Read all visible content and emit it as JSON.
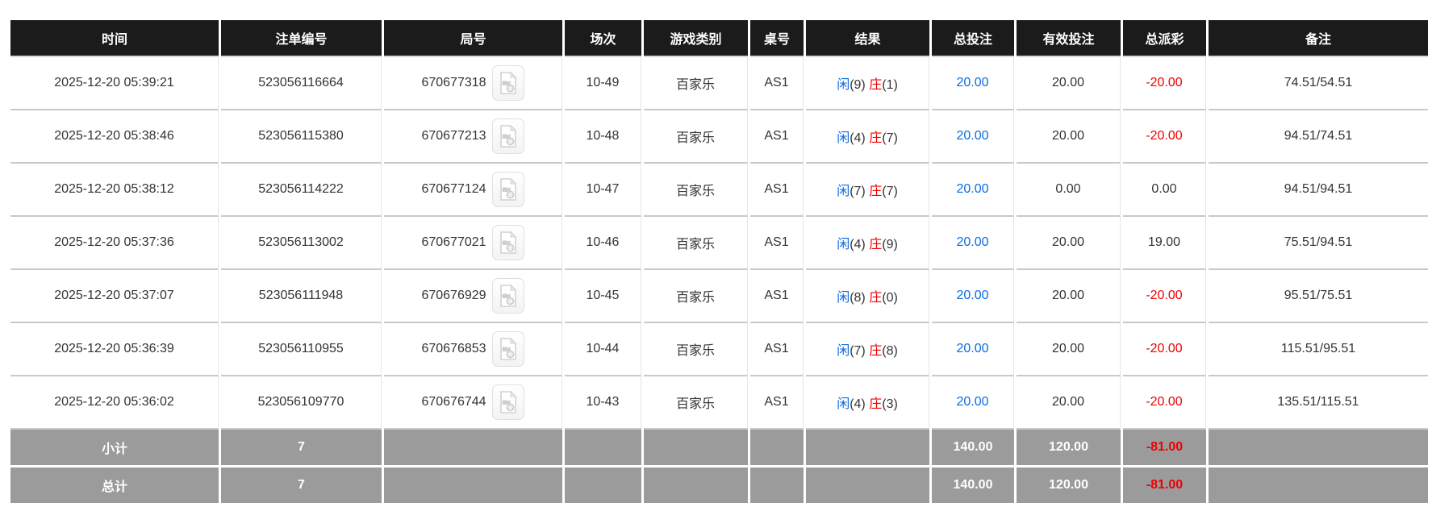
{
  "colors": {
    "header_bg": "#1b1b1b",
    "summary_bg": "#9b9b9b",
    "accent_blue": "#0a6ce0",
    "accent_red": "#ee0000",
    "body_text": "#333333"
  },
  "table": {
    "columns": [
      {
        "key": "time",
        "label": "时间"
      },
      {
        "key": "bet-id",
        "label": "注单编号"
      },
      {
        "key": "round-id",
        "label": "局号"
      },
      {
        "key": "session",
        "label": "场次"
      },
      {
        "key": "game-type",
        "label": "游戏类别"
      },
      {
        "key": "table-no",
        "label": "桌号"
      },
      {
        "key": "result",
        "label": "结果"
      },
      {
        "key": "total-bet",
        "label": "总投注"
      },
      {
        "key": "valid-bet",
        "label": "有效投注"
      },
      {
        "key": "total-payout",
        "label": "总派彩"
      },
      {
        "key": "remark",
        "label": "备注"
      }
    ],
    "rows": [
      {
        "time": "2025-12-20 05:39:21",
        "bet_id": "523056116664",
        "round_id": "670677318",
        "session": "10-49",
        "game_type": "百家乐",
        "table_no": "AS1",
        "player_label": "闲",
        "player_score": "(9)",
        "banker_label": "庄",
        "banker_score": "(1)",
        "total_bet": "20.00",
        "valid_bet": "20.00",
        "total_payout": "-20.00",
        "remark": "74.51/54.51"
      },
      {
        "time": "2025-12-20 05:38:46",
        "bet_id": "523056115380",
        "round_id": "670677213",
        "session": "10-48",
        "game_type": "百家乐",
        "table_no": "AS1",
        "player_label": "闲",
        "player_score": "(4)",
        "banker_label": "庄",
        "banker_score": "(7)",
        "total_bet": "20.00",
        "valid_bet": "20.00",
        "total_payout": "-20.00",
        "remark": "94.51/74.51"
      },
      {
        "time": "2025-12-20 05:38:12",
        "bet_id": "523056114222",
        "round_id": "670677124",
        "session": "10-47",
        "game_type": "百家乐",
        "table_no": "AS1",
        "player_label": "闲",
        "player_score": "(7)",
        "banker_label": "庄",
        "banker_score": "(7)",
        "total_bet": "20.00",
        "valid_bet": "0.00",
        "total_payout": "0.00",
        "remark": "94.51/94.51"
      },
      {
        "time": "2025-12-20 05:37:36",
        "bet_id": "523056113002",
        "round_id": "670677021",
        "session": "10-46",
        "game_type": "百家乐",
        "table_no": "AS1",
        "player_label": "闲",
        "player_score": "(4)",
        "banker_label": "庄",
        "banker_score": "(9)",
        "total_bet": "20.00",
        "valid_bet": "20.00",
        "total_payout": "19.00",
        "remark": "75.51/94.51"
      },
      {
        "time": "2025-12-20 05:37:07",
        "bet_id": "523056111948",
        "round_id": "670676929",
        "session": "10-45",
        "game_type": "百家乐",
        "table_no": "AS1",
        "player_label": "闲",
        "player_score": "(8)",
        "banker_label": "庄",
        "banker_score": "(0)",
        "total_bet": "20.00",
        "valid_bet": "20.00",
        "total_payout": "-20.00",
        "remark": "95.51/75.51"
      },
      {
        "time": "2025-12-20 05:36:39",
        "bet_id": "523056110955",
        "round_id": "670676853",
        "session": "10-44",
        "game_type": "百家乐",
        "table_no": "AS1",
        "player_label": "闲",
        "player_score": "(7)",
        "banker_label": "庄",
        "banker_score": "(8)",
        "total_bet": "20.00",
        "valid_bet": "20.00",
        "total_payout": "-20.00",
        "remark": "115.51/95.51"
      },
      {
        "time": "2025-12-20 05:36:02",
        "bet_id": "523056109770",
        "round_id": "670676744",
        "session": "10-43",
        "game_type": "百家乐",
        "table_no": "AS1",
        "player_label": "闲",
        "player_score": "(4)",
        "banker_label": "庄",
        "banker_score": "(3)",
        "total_bet": "20.00",
        "valid_bet": "20.00",
        "total_payout": "-20.00",
        "remark": "135.51/115.51"
      }
    ],
    "summary_rows": [
      {
        "label": "小计",
        "count": "7",
        "total_bet": "140.00",
        "valid_bet": "120.00",
        "total_payout": "-81.00"
      },
      {
        "label": "总计",
        "count": "7",
        "total_bet": "140.00",
        "valid_bet": "120.00",
        "total_payout": "-81.00"
      }
    ]
  }
}
